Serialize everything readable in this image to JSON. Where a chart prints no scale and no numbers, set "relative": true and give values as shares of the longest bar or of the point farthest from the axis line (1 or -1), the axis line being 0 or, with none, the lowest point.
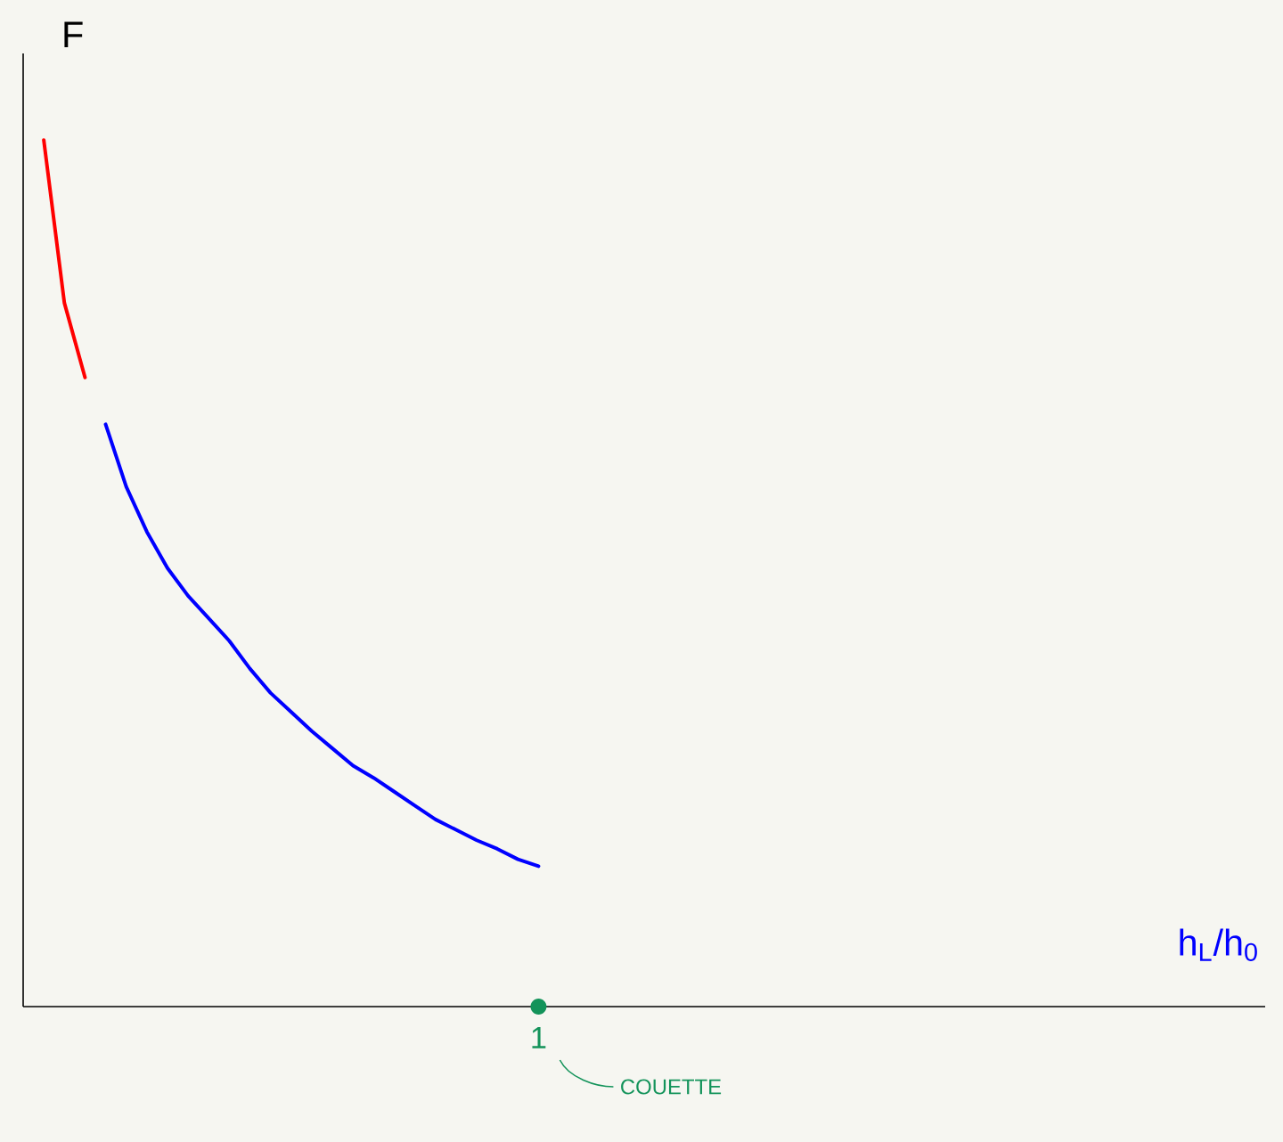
{
  "chart_data": {
    "type": "line",
    "relative": true,
    "ylabel": "F",
    "categories": [
      null,
      null,
      null,
      null,
      null,
      null,
      null,
      null,
      null,
      null,
      null,
      null,
      null,
      null,
      null,
      null,
      null,
      null,
      null,
      null,
      null,
      null,
      null,
      null,
      null,
      null
    ],
    "annotations": [
      "1",
      "COUETTE",
      "h$_{L}$/h$_{0}$"
    ],
    "series": [
      {
        "color": "#ff0000",
        "values": [
          null,
          1.0,
          0.812,
          0.726,
          null,
          null,
          null,
          null,
          null,
          null,
          null,
          null,
          null,
          null,
          null,
          null,
          null,
          null,
          null,
          null,
          null,
          null,
          null,
          null,
          null,
          null
        ]
      },
      {
        "color": "#0000ff",
        "values": [
          null,
          null,
          null,
          null,
          0.672,
          0.6,
          0.548,
          0.506,
          0.474,
          0.448,
          0.422,
          0.39,
          0.362,
          0.34,
          0.318,
          0.298,
          0.278,
          0.264,
          0.248,
          0.232,
          0.216,
          0.204,
          0.192,
          0.182,
          0.17,
          0.162
        ]
      }
    ]
  }
}
